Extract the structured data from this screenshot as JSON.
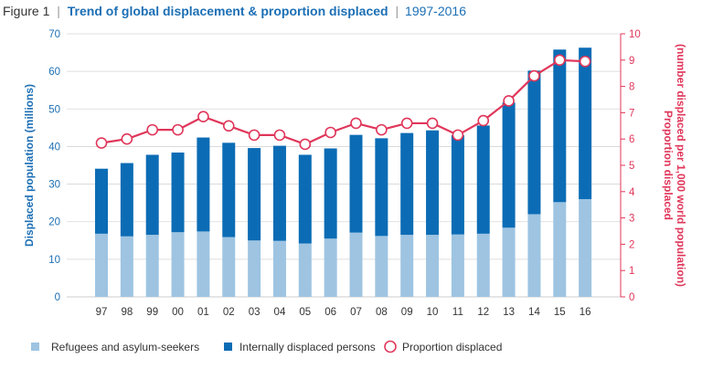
{
  "colors": {
    "refugees": "#9ec4e2",
    "idp": "#0b6cb5",
    "proportion": "#e0365a",
    "left_axis": "#1c6fb5",
    "right_axis": "#e0365a",
    "grid": "#d6d6d6",
    "title_blue": "#1c6fb5"
  },
  "title": {
    "prefix": "Figure 1",
    "sep1": "|",
    "main": "Trend of global displacement & proportion displaced",
    "sep2": "|",
    "years": "1997-2016"
  },
  "chart_data": {
    "type": "bar",
    "title": "Trend of global displacement & proportion displaced",
    "categories": [
      "97",
      "98",
      "99",
      "00",
      "01",
      "02",
      "03",
      "04",
      "05",
      "06",
      "07",
      "08",
      "09",
      "10",
      "11",
      "12",
      "13",
      "14",
      "15",
      "16"
    ],
    "ylabel": "Displaced population (millions)",
    "y2label_line1": "Proportion displaced",
    "y2label_line2": "(number displaced per 1,000 world population)",
    "ylim": [
      0,
      70
    ],
    "y_ticks": [
      "0",
      "10",
      "20",
      "30",
      "40",
      "50",
      "60",
      "70"
    ],
    "y2lim": [
      0,
      10
    ],
    "y2_ticks": [
      "0",
      "1",
      "2",
      "3",
      "4",
      "5",
      "6",
      "7",
      "8",
      "9",
      "10"
    ],
    "series": [
      {
        "name": "Refugees and asylum-seekers",
        "type": "bar-stacked",
        "values": [
          16.8,
          16.1,
          16.5,
          17.2,
          17.4,
          15.9,
          15.0,
          14.9,
          14.2,
          15.5,
          17.1,
          16.2,
          16.5,
          16.5,
          16.6,
          16.8,
          18.4,
          22.0,
          25.2,
          26.0
        ]
      },
      {
        "name": "Internally displaced persons",
        "type": "bar-stacked",
        "values": [
          17.3,
          19.5,
          21.3,
          21.2,
          25.0,
          25.1,
          24.6,
          25.3,
          23.6,
          24.0,
          26.0,
          26.0,
          27.1,
          27.8,
          26.4,
          28.8,
          33.3,
          38.2,
          40.6,
          40.3
        ]
      },
      {
        "name": "Proportion displaced",
        "type": "line",
        "axis": "right",
        "values": [
          5.85,
          6.0,
          6.35,
          6.35,
          6.85,
          6.5,
          6.15,
          6.15,
          5.8,
          6.25,
          6.6,
          6.35,
          6.6,
          6.6,
          6.15,
          6.7,
          7.45,
          8.4,
          9.0,
          8.95
        ]
      }
    ]
  },
  "legend": [
    {
      "label": "Refugees and asylum-seekers",
      "icon": "square-swatch"
    },
    {
      "label": "Internally displaced persons",
      "icon": "square-swatch"
    },
    {
      "label": "Proportion displaced",
      "icon": "circle-marker"
    }
  ]
}
